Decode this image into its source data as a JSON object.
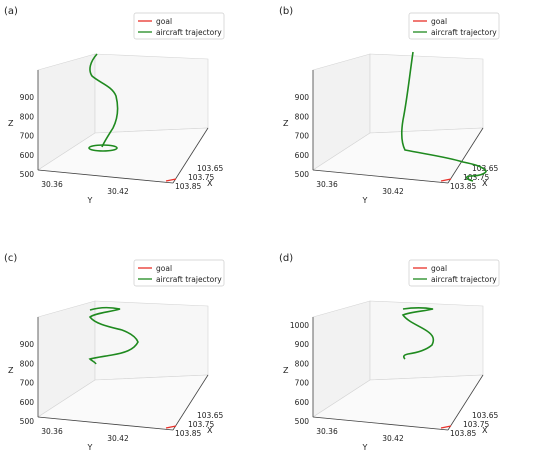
{
  "chart_data": [
    {
      "type": "line3d",
      "panel_label": "(a)",
      "legend": [
        "goal",
        "aircraft trajectory"
      ],
      "colors": {
        "goal": "#e8312a",
        "trajectory": "#1f8a1f"
      },
      "zlabel": "Z",
      "xlabel": "X",
      "ylabel": "Y",
      "z_ticks": [
        "500",
        "600",
        "700",
        "800",
        "900"
      ],
      "x_ticks": [
        "103.65",
        "103.75",
        "103.85"
      ],
      "y_ticks": [
        "30.36",
        "30.42"
      ]
    },
    {
      "type": "line3d",
      "panel_label": "(b)",
      "legend": [
        "goal",
        "aircraft trajectory"
      ],
      "colors": {
        "goal": "#e8312a",
        "trajectory": "#1f8a1f"
      },
      "zlabel": "Z",
      "xlabel": "X",
      "ylabel": "Y",
      "z_ticks": [
        "500",
        "600",
        "700",
        "800",
        "900"
      ],
      "x_ticks": [
        "103.65",
        "103.75",
        "103.85"
      ],
      "y_ticks": [
        "30.36",
        "30.42"
      ]
    },
    {
      "type": "line3d",
      "panel_label": "(c)",
      "legend": [
        "goal",
        "aircraft trajectory"
      ],
      "colors": {
        "goal": "#e8312a",
        "trajectory": "#1f8a1f"
      },
      "zlabel": "Z",
      "xlabel": "X",
      "ylabel": "Y",
      "z_ticks": [
        "500",
        "600",
        "700",
        "800",
        "900"
      ],
      "x_ticks": [
        "103.65",
        "103.75",
        "103.85"
      ],
      "y_ticks": [
        "30.36",
        "30.42"
      ]
    },
    {
      "type": "line3d",
      "panel_label": "(d)",
      "legend": [
        "goal",
        "aircraft trajectory"
      ],
      "colors": {
        "goal": "#e8312a",
        "trajectory": "#1f8a1f"
      },
      "zlabel": "Z",
      "xlabel": "X",
      "ylabel": "Y",
      "z_ticks": [
        "500",
        "600",
        "700",
        "800",
        "900",
        "1000"
      ],
      "x_ticks": [
        "103.65",
        "103.75",
        "103.85"
      ],
      "y_ticks": [
        "30.36",
        "30.42"
      ]
    }
  ]
}
